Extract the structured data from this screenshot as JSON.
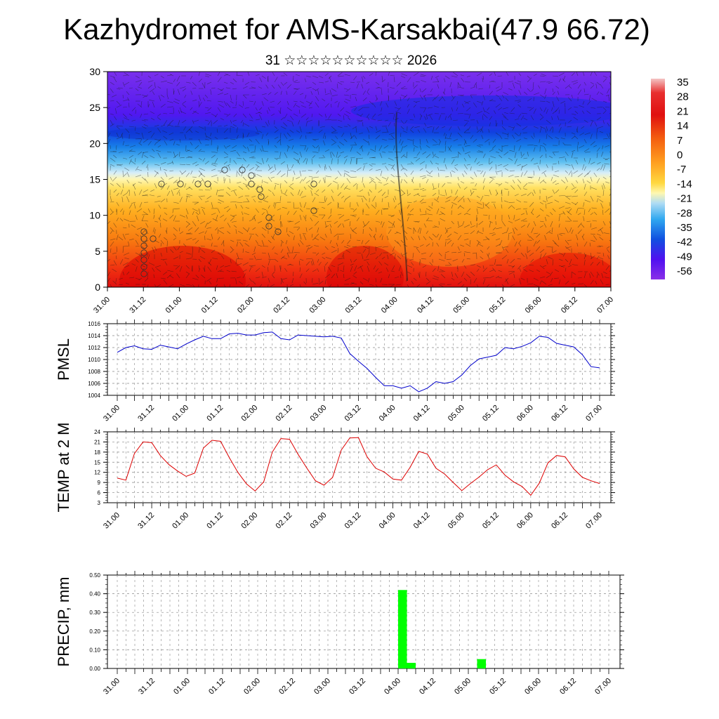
{
  "header": {
    "title": "Kazhydromet for AMS-Karsakbai(47.9 66.72)",
    "subtitle": "31 ☆☆☆☆☆☆☆☆☆☆ 2026"
  },
  "time_labels": [
    "31.00",
    "31.12",
    "01.00",
    "01.12",
    "02.00",
    "02.12",
    "03.00",
    "03.12",
    "04.00",
    "04.12",
    "05.00",
    "05.12",
    "06.00",
    "06.12",
    "07.00"
  ],
  "chart_data": [
    {
      "type": "heatmap",
      "name": "vertical temperature and wind cross-section",
      "ylim": [
        0,
        30
      ],
      "yticks": [
        0,
        5,
        10,
        15,
        20,
        25,
        30
      ],
      "colorbar": {
        "labels": [
          "35",
          "28",
          "21",
          "14",
          "7",
          "0",
          "-7",
          "-14",
          "-21",
          "-28",
          "-35",
          "-42",
          "-49",
          "-56"
        ],
        "stops": [
          "#f2c0c0",
          "#e60000",
          "#f06000",
          "#ff9a00",
          "#ffd000",
          "#fff8a0",
          "#a8d8f0",
          "#30a8f0",
          "#1050e0",
          "#6a10f0",
          "#8030e8"
        ]
      }
    },
    {
      "type": "line",
      "name": "pmsl",
      "ylabel": "PMSL",
      "ylim": [
        1004,
        1016
      ],
      "yticks": [
        1004,
        1006,
        1008,
        1010,
        1012,
        1014,
        1016
      ],
      "color": "#0000cc",
      "values": [
        1011.2,
        1012.0,
        1012.3,
        1011.8,
        1011.7,
        1012.4,
        1012.1,
        1011.8,
        1012.6,
        1013.3,
        1013.9,
        1013.5,
        1013.5,
        1014.3,
        1014.4,
        1014.1,
        1014.1,
        1014.5,
        1014.6,
        1013.5,
        1013.3,
        1014.1,
        1014.0,
        1013.9,
        1013.8,
        1013.9,
        1013.6,
        1011.0,
        1009.7,
        1008.5,
        1007.0,
        1005.6,
        1005.6,
        1005.2,
        1005.6,
        1004.6,
        1005.2,
        1006.3,
        1006.0,
        1006.3,
        1007.4,
        1009.0,
        1010.1,
        1010.4,
        1010.7,
        1012.0,
        1011.8,
        1012.2,
        1012.8,
        1013.9,
        1013.7,
        1012.7,
        1012.4,
        1012.1,
        1010.8,
        1008.8,
        1008.6
      ]
    },
    {
      "type": "line",
      "name": "temp2m",
      "ylabel": "TEMP at 2 M",
      "ylim": [
        3,
        24
      ],
      "yticks": [
        3,
        6,
        9,
        12,
        15,
        18,
        21,
        24
      ],
      "color": "#dd0000",
      "values": [
        10.3,
        9.7,
        17.6,
        21.0,
        20.8,
        17.0,
        14.3,
        12.4,
        10.8,
        11.8,
        19.2,
        21.5,
        21.2,
        16.4,
        12.0,
        8.6,
        6.5,
        9.2,
        18.0,
        22.0,
        21.8,
        17.3,
        13.3,
        9.5,
        8.2,
        10.5,
        18.6,
        22.2,
        22.3,
        16.6,
        13.2,
        12.1,
        10.0,
        9.7,
        13.5,
        18.2,
        17.4,
        13.2,
        11.5,
        9.0,
        6.6,
        8.7,
        10.6,
        12.8,
        14.2,
        11.2,
        9.2,
        7.8,
        5.2,
        8.8,
        14.8,
        17.0,
        16.6,
        13.0,
        10.5,
        9.5,
        8.7
      ]
    },
    {
      "type": "bar",
      "name": "precip",
      "ylabel": "PRECIP, mm",
      "ylim": [
        0,
        0.5
      ],
      "yticks": [
        "0.00",
        "0.10",
        "0.20",
        "0.30",
        "0.40",
        "0.50"
      ],
      "color": "#00ff00",
      "bars": [
        {
          "time_index": 8.0,
          "value": 0.42
        },
        {
          "time_index": 8.25,
          "value": 0.03
        },
        {
          "time_index": 10.25,
          "value": 0.05
        }
      ]
    }
  ]
}
